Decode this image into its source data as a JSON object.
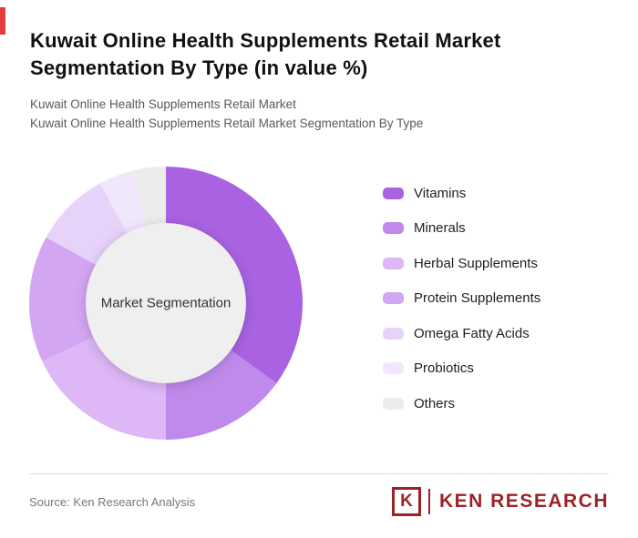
{
  "accent_color": "#e43d3f",
  "header": {
    "title": "Kuwait Online Health Supplements Retail Market Segmentation By Type (in value %)",
    "subtitle_line1": "Kuwait Online Health Supplements Retail Market",
    "subtitle_line2": "Kuwait Online Health Supplements Retail Market Segmentation By Type"
  },
  "chart_data": {
    "type": "pie",
    "donut": true,
    "center_label": "Market Segmentation",
    "legend_position": "right",
    "categories": [
      "Vitamins",
      "Minerals",
      "Herbal Supplements",
      "Protein Supplements",
      "Omega Fatty Acids",
      "Probiotics",
      "Others"
    ],
    "values": [
      35,
      15,
      18,
      15,
      9,
      4,
      4
    ],
    "colors": [
      "#a963e2",
      "#c08aec",
      "#ddb7f6",
      "#d3a6f2",
      "#e7d2fa",
      "#f1e7fd",
      "#ececec"
    ],
    "inner_circle_color": "#efefef",
    "start_angle_deg": -90,
    "direction": "clockwise",
    "units": "percent of value"
  },
  "footer": {
    "source": "Source: Ken Research Analysis",
    "logo_letter": "K",
    "logo_text": "KEN RESEARCH",
    "logo_color": "#9b2328"
  }
}
